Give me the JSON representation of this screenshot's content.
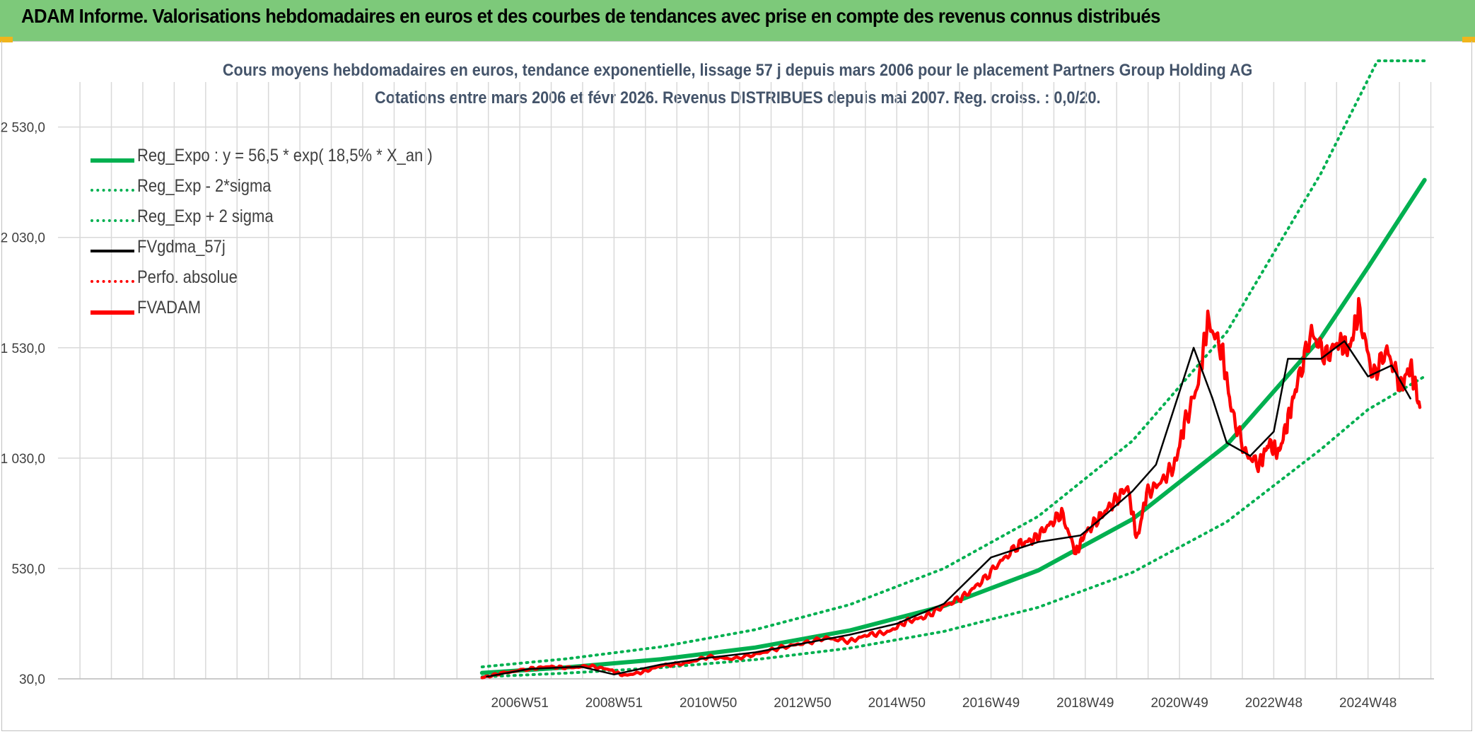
{
  "header": {
    "title": "ADAM Informe. Valorisations hebdomadaires en euros et des courbes de tendances avec prise en compte des revenus connus distribués"
  },
  "colors": {
    "banner_bg": "#7dc97a",
    "trend_green": "#00b050",
    "price_red": "#ff0000",
    "smooth_black": "#000000",
    "title_text": "#44546a",
    "grid": "#d9d9d9"
  },
  "chart_data": {
    "type": "line",
    "title": "Cours moyens hebdomadaires en euros, tendance exponentielle, lissage 57 j depuis mars 2006 pour le placement Partners Group Holding AG",
    "subtitle": "Cotations entre mars 2006 et févr 2026. Revenus DISTRIBUES depuis mai 2007. Reg. croiss. : 0,0/20.",
    "xlabel": "",
    "ylabel": "",
    "x_range": [
      1997.2,
      2026.4
    ],
    "ylim": [
      30,
      2830
    ],
    "y_ticks": [
      30,
      530,
      1030,
      1530,
      2030,
      2530
    ],
    "y_tick_labels": [
      "30,0",
      "530,0",
      "1 030,0",
      "1 530,0",
      "2 030,0",
      "2 530,0"
    ],
    "x_ticks": [
      2007.0,
      2009.0,
      2011.0,
      2013.0,
      2015.0,
      2017.0,
      2019.0,
      2021.0,
      2023.0,
      2025.0
    ],
    "x_tick_labels": [
      "2006W51",
      "2008W51",
      "2010W50",
      "2012W50",
      "2014W50",
      "2016W49",
      "2018W49",
      "2020W49",
      "2022W48",
      "2024W48"
    ],
    "grid": true,
    "legend_position": "top-left",
    "series": [
      {
        "name": "Reg_Expo : y = 56,5 * exp( 18,5% *  X_an )",
        "style": "solid-thick",
        "color": "#00b050",
        "x": [
          2006.2,
          2008,
          2010,
          2012,
          2014,
          2016,
          2018,
          2020,
          2022,
          2024,
          2025,
          2026.2
        ],
        "y": [
          57,
          82,
          119,
          172,
          249,
          360,
          521,
          753,
          1089,
          1575,
          1895,
          2290
        ]
      },
      {
        "name": "Reg_Exp - 2*sigma",
        "style": "dotted",
        "color": "#00b050",
        "x": [
          2006.2,
          2008,
          2010,
          2012,
          2014,
          2016,
          2018,
          2020,
          2022,
          2024,
          2025,
          2026.2
        ],
        "y": [
          39,
          56,
          81,
          117,
          169,
          245,
          354,
          512,
          741,
          1070,
          1250,
          1400
        ]
      },
      {
        "name": "Reg_Exp + 2 sigma",
        "style": "dotted",
        "color": "#00b050",
        "x": [
          2006.2,
          2008,
          2010,
          2012,
          2014,
          2016,
          2018,
          2020,
          2022,
          2024,
          2025.2,
          2026.2
        ],
        "y": [
          84,
          121,
          175,
          253,
          366,
          530,
          766,
          1108,
          1600,
          2320,
          2830,
          2830
        ]
      },
      {
        "name": "FVgdma_57j",
        "style": "solid",
        "color": "#000000",
        "x": [
          2006.3,
          2007.2,
          2008.3,
          2009.0,
          2010.0,
          2011.0,
          2012.0,
          2013.0,
          2014.0,
          2015.0,
          2016.0,
          2017.0,
          2018.0,
          2018.9,
          2019.3,
          2020.0,
          2020.5,
          2021.3,
          2021.7,
          2022.0,
          2022.5,
          2023.0,
          2023.3,
          2024.0,
          2024.5,
          2025.0,
          2025.5,
          2025.9
        ],
        "y": [
          40,
          75,
          85,
          50,
          95,
          125,
          150,
          190,
          230,
          280,
          370,
          580,
          650,
          680,
          750,
          880,
          1000,
          1530,
          1300,
          1100,
          1040,
          1150,
          1480,
          1480,
          1560,
          1400,
          1450,
          1300
        ]
      },
      {
        "name": "Perfo. absolue",
        "style": "dotted",
        "color": "#ff0000",
        "x": [],
        "y": []
      },
      {
        "name": "FVADAM",
        "style": "solid-thick",
        "color": "#ff0000",
        "x": [
          2006.2,
          2006.6,
          2007.2,
          2007.6,
          2008.0,
          2008.5,
          2008.9,
          2009.2,
          2009.6,
          2010.0,
          2010.5,
          2011.0,
          2011.5,
          2012.0,
          2012.5,
          2013.0,
          2013.5,
          2014.0,
          2014.4,
          2014.8,
          2015.2,
          2015.6,
          2016.0,
          2016.4,
          2016.8,
          2017.2,
          2017.6,
          2017.9,
          2018.2,
          2018.5,
          2018.8,
          2019.0,
          2019.3,
          2019.6,
          2019.9,
          2020.1,
          2020.3,
          2020.6,
          2020.9,
          2021.1,
          2021.4,
          2021.6,
          2021.9,
          2022.1,
          2022.4,
          2022.7,
          2022.9,
          2023.1,
          2023.3,
          2023.5,
          2023.8,
          2024.1,
          2024.4,
          2024.6,
          2024.8,
          2025.1,
          2025.4,
          2025.7,
          2025.9,
          2026.1
        ],
        "y": [
          35,
          55,
          75,
          85,
          80,
          88,
          72,
          45,
          60,
          90,
          100,
          130,
          120,
          140,
          170,
          190,
          215,
          200,
          230,
          240,
          290,
          310,
          360,
          400,
          470,
          560,
          640,
          660,
          720,
          780,
          600,
          690,
          760,
          830,
          900,
          660,
          870,
          920,
          1000,
          1180,
          1370,
          1650,
          1520,
          1250,
          1050,
          1000,
          1100,
          1050,
          1200,
          1370,
          1600,
          1490,
          1560,
          1520,
          1700,
          1400,
          1520,
          1350,
          1450,
          1260
        ]
      }
    ]
  }
}
